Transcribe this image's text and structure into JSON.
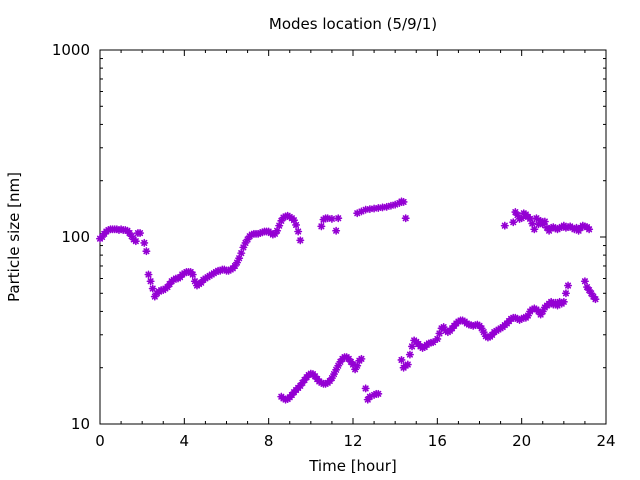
{
  "chart_data": {
    "type": "scatter",
    "title": "Modes location (5/9/1)",
    "xlabel": "Time [hour]",
    "ylabel": "Particle size [nm]",
    "xlim": [
      0,
      24
    ],
    "ylim": [
      10,
      1000
    ],
    "yscale": "log",
    "x_ticks": [
      0,
      4,
      8,
      12,
      16,
      20,
      24
    ],
    "x_tick_labels": [
      "0",
      "4",
      "8",
      "12",
      "16",
      "20",
      "24"
    ],
    "y_ticks": [
      10,
      100,
      1000
    ],
    "y_tick_labels": [
      "10",
      "100",
      "1000"
    ],
    "grid": false,
    "legend": "none",
    "marker_color": "#9400d3",
    "series": [
      {
        "points": [
          [
            0.0,
            98
          ],
          [
            0.1,
            100
          ],
          [
            0.2,
            104
          ],
          [
            0.3,
            107
          ],
          [
            0.4,
            109
          ],
          [
            0.5,
            110
          ],
          [
            0.6,
            110
          ],
          [
            0.7,
            110
          ],
          [
            0.8,
            110
          ],
          [
            0.9,
            109
          ],
          [
            1.0,
            110
          ],
          [
            1.1,
            109
          ],
          [
            1.2,
            109
          ],
          [
            1.3,
            108
          ],
          [
            1.4,
            105
          ],
          [
            1.5,
            101
          ],
          [
            1.6,
            97
          ],
          [
            1.7,
            95
          ],
          [
            1.8,
            105
          ],
          [
            1.9,
            105
          ],
          [
            2.1,
            93
          ],
          [
            2.2,
            84
          ],
          [
            2.3,
            63
          ],
          [
            2.4,
            58
          ],
          [
            2.5,
            53
          ],
          [
            2.6,
            48
          ],
          [
            2.7,
            50
          ],
          [
            2.8,
            51
          ],
          [
            2.9,
            52
          ],
          [
            3.0,
            52
          ],
          [
            3.1,
            53
          ],
          [
            3.2,
            54
          ],
          [
            3.3,
            56
          ],
          [
            3.4,
            58
          ],
          [
            3.5,
            59
          ],
          [
            3.6,
            60
          ],
          [
            3.7,
            60
          ],
          [
            3.8,
            61
          ],
          [
            3.9,
            63
          ],
          [
            4.0,
            64
          ],
          [
            4.1,
            65
          ],
          [
            4.2,
            65
          ],
          [
            4.3,
            65
          ],
          [
            4.4,
            63
          ],
          [
            4.5,
            58
          ],
          [
            4.6,
            55
          ],
          [
            4.7,
            56
          ],
          [
            4.8,
            57
          ],
          [
            4.9,
            59
          ],
          [
            5.0,
            60
          ],
          [
            5.1,
            61
          ],
          [
            5.2,
            62
          ],
          [
            5.3,
            63
          ],
          [
            5.4,
            64
          ],
          [
            5.5,
            65
          ],
          [
            5.6,
            66
          ],
          [
            5.7,
            66
          ],
          [
            5.8,
            67
          ],
          [
            5.9,
            67
          ],
          [
            6.0,
            66
          ],
          [
            6.1,
            66
          ],
          [
            6.2,
            67
          ],
          [
            6.3,
            68
          ],
          [
            6.4,
            70
          ],
          [
            6.5,
            73
          ],
          [
            6.6,
            77
          ],
          [
            6.7,
            82
          ],
          [
            6.8,
            88
          ],
          [
            6.9,
            93
          ],
          [
            7.0,
            97
          ],
          [
            7.1,
            101
          ],
          [
            7.2,
            103
          ],
          [
            7.3,
            104
          ],
          [
            7.4,
            104
          ],
          [
            7.5,
            104
          ],
          [
            7.6,
            105
          ],
          [
            7.7,
            106
          ],
          [
            7.8,
            107
          ],
          [
            7.9,
            107
          ],
          [
            8.0,
            107
          ],
          [
            8.1,
            105
          ],
          [
            8.2,
            103
          ],
          [
            8.3,
            104
          ],
          [
            8.4,
            108
          ],
          [
            8.5,
            115
          ],
          [
            8.6,
            122
          ],
          [
            8.7,
            127
          ],
          [
            8.8,
            129
          ],
          [
            8.9,
            130
          ],
          [
            9.0,
            128
          ],
          [
            9.1,
            126
          ],
          [
            9.2,
            123
          ],
          [
            9.3,
            116
          ],
          [
            9.4,
            107
          ],
          [
            9.5,
            96
          ],
          [
            10.5,
            114
          ],
          [
            10.6,
            124
          ],
          [
            10.7,
            126
          ],
          [
            10.8,
            126
          ],
          [
            11.0,
            125
          ],
          [
            11.2,
            108
          ],
          [
            11.3,
            126
          ],
          [
            12.2,
            134
          ],
          [
            12.4,
            137
          ],
          [
            12.6,
            140
          ],
          [
            12.8,
            141
          ],
          [
            13.0,
            142
          ],
          [
            13.2,
            143
          ],
          [
            13.4,
            144
          ],
          [
            13.6,
            145
          ],
          [
            13.8,
            147
          ],
          [
            14.0,
            149
          ],
          [
            14.2,
            152
          ],
          [
            14.3,
            155
          ],
          [
            14.4,
            154
          ],
          [
            14.5,
            126
          ],
          [
            19.2,
            115
          ],
          [
            19.6,
            120
          ],
          [
            19.7,
            136
          ],
          [
            19.8,
            131
          ],
          [
            19.9,
            125
          ],
          [
            20.0,
            126
          ],
          [
            20.1,
            134
          ],
          [
            20.2,
            132
          ],
          [
            20.3,
            128
          ],
          [
            20.4,
            125
          ],
          [
            20.5,
            118
          ],
          [
            20.6,
            110
          ],
          [
            20.7,
            126
          ],
          [
            20.8,
            117
          ],
          [
            20.9,
            122
          ],
          [
            21.0,
            117
          ],
          [
            21.1,
            121
          ],
          [
            21.2,
            112
          ],
          [
            21.3,
            108
          ],
          [
            21.4,
            112
          ],
          [
            21.5,
            113
          ],
          [
            21.6,
            111
          ],
          [
            21.7,
            110
          ],
          [
            21.8,
            112
          ],
          [
            21.9,
            113
          ],
          [
            22.0,
            115
          ],
          [
            22.1,
            112
          ],
          [
            22.2,
            113
          ],
          [
            22.3,
            114
          ],
          [
            22.4,
            112
          ],
          [
            22.5,
            110
          ],
          [
            22.6,
            112
          ],
          [
            22.7,
            108
          ],
          [
            22.8,
            112
          ],
          [
            22.9,
            115
          ],
          [
            23.0,
            114
          ],
          [
            23.1,
            113
          ],
          [
            23.2,
            110
          ],
          [
            8.6,
            14
          ],
          [
            8.7,
            13.7
          ],
          [
            8.8,
            13.5
          ],
          [
            8.9,
            13.6
          ],
          [
            9.0,
            13.9
          ],
          [
            9.1,
            14.3
          ],
          [
            9.2,
            14.8
          ],
          [
            9.3,
            15.2
          ],
          [
            9.4,
            15.6
          ],
          [
            9.5,
            16.0
          ],
          [
            9.6,
            16.6
          ],
          [
            9.7,
            17.2
          ],
          [
            9.8,
            17.8
          ],
          [
            9.9,
            18.3
          ],
          [
            10.0,
            18.6
          ],
          [
            10.1,
            18.5
          ],
          [
            10.2,
            18.0
          ],
          [
            10.3,
            17.4
          ],
          [
            10.4,
            16.9
          ],
          [
            10.5,
            16.6
          ],
          [
            10.6,
            16.4
          ],
          [
            10.7,
            16.4
          ],
          [
            10.8,
            16.6
          ],
          [
            10.9,
            17.0
          ],
          [
            11.0,
            17.6
          ],
          [
            11.1,
            18.5
          ],
          [
            11.2,
            19.5
          ],
          [
            11.3,
            20.5
          ],
          [
            11.4,
            21.5
          ],
          [
            11.5,
            22.3
          ],
          [
            11.6,
            22.8
          ],
          [
            11.7,
            22.8
          ],
          [
            11.8,
            22.3
          ],
          [
            11.9,
            21.5
          ],
          [
            12.0,
            20.8
          ],
          [
            12.1,
            19.6
          ],
          [
            12.2,
            20.5
          ],
          [
            12.3,
            21.8
          ],
          [
            12.4,
            22.3
          ],
          [
            12.6,
            15.5
          ],
          [
            12.7,
            13.5
          ],
          [
            12.8,
            14.0
          ],
          [
            13.0,
            14.3
          ],
          [
            13.1,
            14.5
          ],
          [
            13.2,
            14.5
          ],
          [
            14.3,
            22.0
          ],
          [
            14.4,
            20.0
          ],
          [
            14.5,
            20.5
          ],
          [
            14.6,
            20.8
          ],
          [
            14.7,
            23.5
          ],
          [
            14.8,
            26.0
          ],
          [
            14.9,
            28.0
          ],
          [
            15.0,
            27.5
          ],
          [
            15.1,
            26.8
          ],
          [
            15.2,
            26.0
          ],
          [
            15.3,
            25.5
          ],
          [
            15.4,
            25.8
          ],
          [
            15.5,
            26.5
          ],
          [
            15.6,
            27.0
          ],
          [
            15.7,
            27.2
          ],
          [
            15.8,
            27.4
          ],
          [
            16.0,
            28.5
          ],
          [
            16.1,
            30.5
          ],
          [
            16.2,
            32.5
          ],
          [
            16.3,
            33.0
          ],
          [
            16.4,
            31.5
          ],
          [
            16.5,
            31.0
          ],
          [
            16.6,
            31.5
          ],
          [
            16.7,
            32.5
          ],
          [
            16.8,
            33.5
          ],
          [
            16.9,
            34.5
          ],
          [
            17.0,
            35.3
          ],
          [
            17.1,
            35.8
          ],
          [
            17.2,
            35.8
          ],
          [
            17.3,
            35.3
          ],
          [
            17.4,
            34.5
          ],
          [
            17.5,
            34.0
          ],
          [
            17.6,
            33.8
          ],
          [
            17.7,
            33.5
          ],
          [
            17.8,
            33.8
          ],
          [
            17.9,
            34.0
          ],
          [
            18.0,
            33.5
          ],
          [
            18.1,
            32.5
          ],
          [
            18.2,
            31.0
          ],
          [
            18.3,
            29.5
          ],
          [
            18.4,
            29.0
          ],
          [
            18.5,
            29.3
          ],
          [
            18.6,
            30.0
          ],
          [
            18.7,
            31.0
          ],
          [
            18.8,
            31.5
          ],
          [
            18.9,
            32.0
          ],
          [
            19.0,
            32.5
          ],
          [
            19.1,
            33.0
          ],
          [
            19.2,
            33.8
          ],
          [
            19.3,
            34.5
          ],
          [
            19.4,
            35.5
          ],
          [
            19.5,
            36.5
          ],
          [
            19.6,
            37.0
          ],
          [
            19.7,
            37.0
          ],
          [
            19.8,
            36.5
          ],
          [
            19.9,
            36.0
          ],
          [
            20.0,
            36.5
          ],
          [
            20.1,
            37.0
          ],
          [
            20.2,
            37.0
          ],
          [
            20.3,
            38.0
          ],
          [
            20.4,
            40.0
          ],
          [
            20.5,
            41.0
          ],
          [
            20.6,
            41.5
          ],
          [
            20.7,
            41.0
          ],
          [
            20.8,
            40.0
          ],
          [
            20.9,
            38.5
          ],
          [
            21.0,
            40.0
          ],
          [
            21.1,
            42.0
          ],
          [
            21.2,
            43.0
          ],
          [
            21.3,
            44.0
          ],
          [
            21.4,
            45.0
          ],
          [
            21.5,
            43.5
          ],
          [
            21.6,
            44.5
          ],
          [
            21.7,
            43.0
          ],
          [
            21.8,
            45.0
          ],
          [
            21.9,
            44.0
          ],
          [
            22.0,
            45.0
          ],
          [
            22.1,
            50.0
          ],
          [
            22.2,
            55.0
          ],
          [
            23.0,
            58.0
          ],
          [
            23.1,
            54.0
          ],
          [
            23.2,
            52.0
          ],
          [
            23.3,
            50.0
          ],
          [
            23.4,
            48.0
          ],
          [
            23.5,
            46.5
          ]
        ]
      }
    ]
  }
}
